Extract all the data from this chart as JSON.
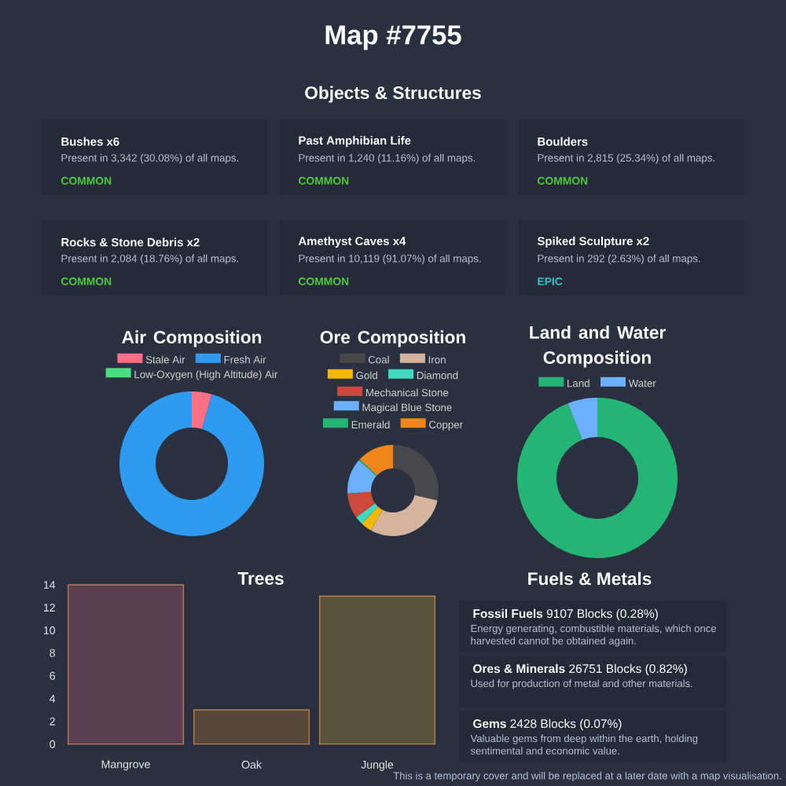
{
  "chart_data": [
    {
      "type": "other",
      "title": "Map #7755",
      "subtitle": "Objects & Structures",
      "annotations": [
        "Bushes x6",
        "Present in 3,342 (30.08%) of all maps.",
        "COMMON",
        "Past Amphibian Life",
        "Present in 1,240 (11.16%) of all maps.",
        "COMMON",
        "Boulders",
        "Present in 2,815 (25.34%) of all maps.",
        "COMMON",
        "Rocks & Stone Debris x2",
        "Present in 2,084 (18.76%) of all maps.",
        "COMMON",
        "Amethyst Caves x4",
        "Present in 10,119 (91.07%) of all maps.",
        "COMMON",
        "Spiked Sculpture x2",
        "Present in 292 (2.63%) of all maps.",
        "EPIC"
      ],
      "colors": [
        "#4cc93a",
        "#4cc93a",
        "#4cc93a",
        "#4cc93a",
        "#4cc93a",
        "#2ec4c9"
      ]
    },
    {
      "type": "donut",
      "title": "Air Composition",
      "categories": [
        "Stale Air",
        "Fresh Air",
        "Low-Oxygen (High Altitude) Air"
      ],
      "values": [
        4.5,
        95.5,
        0
      ],
      "colors": [
        "#ff6f86",
        "#2e9bf0",
        "#4ade80"
      ],
      "legend": "top"
    },
    {
      "type": "donut",
      "title": "Ore Composition",
      "categories": [
        "Coal",
        "Iron",
        "Gold",
        "Diamond",
        "Mechanical Stone",
        "Magical Blue Stone",
        "Emerald",
        "Copper"
      ],
      "values": [
        28.5,
        29.5,
        4,
        3,
        9,
        12.5,
        0.5,
        13
      ],
      "colors": [
        "#48474a",
        "#d4b49c",
        "#f5b800",
        "#40d8c0",
        "#cc4a3c",
        "#6ab0ff",
        "#22b573",
        "#f0861c"
      ],
      "legend": "top"
    },
    {
      "type": "donut",
      "title": "Land and Water Composition",
      "categories": [
        "Land",
        "Water"
      ],
      "values": [
        94,
        6
      ],
      "colors": [
        "#22b573",
        "#6ab0ff"
      ],
      "legend": "top"
    },
    {
      "type": "bar",
      "title": "Trees",
      "categories": [
        "Mangrove",
        "Oak",
        "Jungle"
      ],
      "values": [
        14,
        3,
        13
      ],
      "colors": [
        "#5a3e4f",
        "#584739",
        "#595238"
      ],
      "ylim": [
        0,
        14
      ],
      "yticks": [
        0,
        2,
        4,
        6,
        8,
        10,
        12,
        14
      ]
    },
    {
      "type": "other",
      "title": "Fuels & Metals",
      "annotations": [
        "**Fossil Fuels**  9107 Blocks (0.28%)",
        "Energy generating, combustible materials, which once harvested cannot be obtained again.",
        "**Ores & Minerals**  26751 Blocks (0.82%)",
        "Used for production of metal and other materials.",
        "**Gems**  2428 Blocks (0.07%)",
        "Valuable gems from deep within the earth, holding sentimental and economic value.",
        "This is a temporary cover and will be replaced at a later date with a map visualisation."
      ]
    }
  ]
}
